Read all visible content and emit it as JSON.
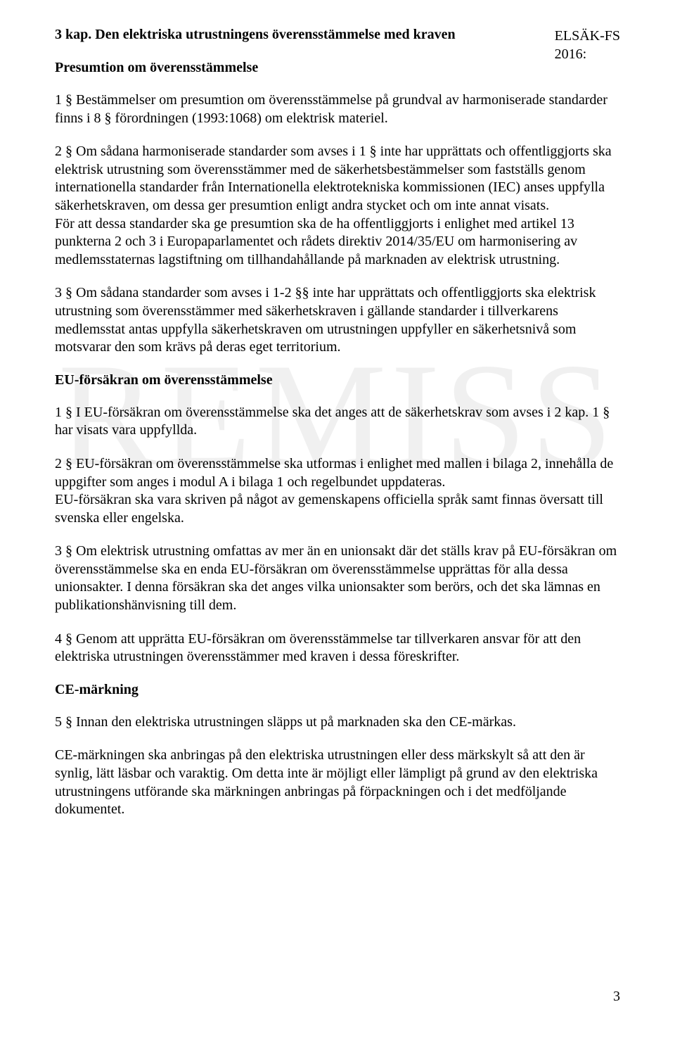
{
  "header": {
    "code_line1": "ELSÄK-FS",
    "code_line2": "2016:"
  },
  "watermark": "REMISS",
  "chapter_title": "3 kap. Den elektriska utrustningens överensstämmelse med kraven",
  "sections": {
    "presumtion": {
      "heading": "Presumtion om överensstämmelse",
      "p1": "1 §   Bestämmelser om presumtion om överensstämmelse på grundval av harmoniserade standarder finns i 8 § förordningen (1993:1068) om elektrisk materiel.",
      "p2a": "2 §   Om sådana harmoniserade standarder som avses i 1 § inte har upprättats och offentliggjorts ska elektrisk utrustning som överensstämmer med de säkerhetsbestämmelser som fastställs genom internationella standarder från Internationella elektrotekniska kommissionen (IEC) anses uppfylla säkerhetskraven, om dessa ger presumtion enligt andra stycket och om inte annat visats.",
      "p2b": "För att dessa standarder ska ge presumtion ska de ha offentliggjorts i enlighet med artikel 13 punkterna 2 och 3 i Europaparlamentet och rådets direktiv 2014/35/EU om harmonisering av medlemsstaternas lagstiftning om tillhandahållande på marknaden av elektrisk utrustning.",
      "p3": "3 §   Om sådana standarder som avses i 1-2 §§ inte har upprättats och offentliggjorts ska elektrisk utrustning som överensstämmer med säkerhetskraven i gällande standarder i tillverkarens medlemsstat antas uppfylla säkerhetskraven om utrustningen uppfyller en säkerhetsnivå som motsvarar den som krävs på deras eget territorium."
    },
    "eu": {
      "heading": "EU-försäkran om överensstämmelse",
      "p1": "1 §   I EU-försäkran om överensstämmelse ska det anges att de säkerhetskrav som avses i 2 kap. 1 § har visats vara uppfyllda.",
      "p2": "2 §   EU-försäkran om överensstämmelse ska utformas i enlighet med mallen i bilaga 2, innehålla de uppgifter som anges i modul A i bilaga 1 och regelbundet uppdateras.",
      "p2b": "EU-försäkran ska vara skriven på något av gemenskapens officiella språk samt finnas översatt till svenska eller engelska.",
      "p3": "3 §   Om elektrisk utrustning omfattas av mer än en unionsakt där det ställs krav på EU-försäkran om överensstämmelse ska en enda EU-försäkran om överensstämmelse upprättas för alla dessa unionsakter. I denna försäkran ska det anges vilka unionsakter som berörs, och det ska lämnas en publikationshänvisning till dem.",
      "p4": "4 §   Genom att upprätta EU-försäkran om överensstämmelse tar tillverkaren ansvar för att den elektriska utrustningen överensstämmer med kraven i dessa föreskrifter."
    },
    "ce": {
      "heading": "CE-märkning",
      "p5": "5 §   Innan den elektriska utrustningen släpps ut på marknaden ska den CE-märkas.",
      "p5b": "CE-märkningen ska anbringas på den elektriska utrustningen eller dess märkskylt så att den är synlig, lätt läsbar och varaktig. Om detta inte är möjligt eller lämpligt på grund av den elektriska utrustningens utförande ska märkningen anbringas på förpackningen och i det medföljande dokumentet."
    }
  },
  "page_number": "3"
}
